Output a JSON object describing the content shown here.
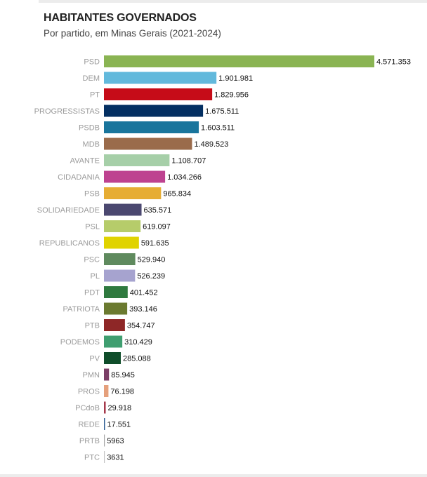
{
  "header": {
    "title": "HABITANTES GOVERNADOS",
    "subtitle": "Por partido, em Minas Gerais (2021-2024)"
  },
  "chart_data": {
    "type": "bar",
    "orientation": "horizontal",
    "title": "HABITANTES GOVERNADOS",
    "subtitle": "Por partido, em Minas Gerais (2021-2024)",
    "xlabel": "",
    "ylabel": "",
    "grid": false,
    "legend": "none",
    "categories": [
      "PSD",
      "DEM",
      "PT",
      "PROGRESSISTAS",
      "PSDB",
      "MDB",
      "AVANTE",
      "CIDADANIA",
      "PSB",
      "SOLIDARIEDADE",
      "PSL",
      "REPUBLICANOS",
      "PSC",
      "PL",
      "PDT",
      "PATRIOTA",
      "PTB",
      "PODEMOS",
      "PV",
      "PMN",
      "PROS",
      "PCdoB",
      "REDE",
      "PRTB",
      "PTC"
    ],
    "values": [
      4571353,
      1901981,
      1829956,
      1675511,
      1603511,
      1489523,
      1108707,
      1034266,
      965834,
      635571,
      619097,
      591635,
      529940,
      526239,
      401452,
      393146,
      354747,
      310429,
      285088,
      85945,
      76198,
      29918,
      17551,
      5963,
      3631
    ],
    "value_labels": [
      "4.571.353",
      "1.901.981",
      "1.829.956",
      "1.675.511",
      "1.603.511",
      "1.489.523",
      "1.108.707",
      "1.034.266",
      "965.834",
      "635.571",
      "619.097",
      "591.635",
      "529.940",
      "526.239",
      "401.452",
      "393.146",
      "354.747",
      "310.429",
      "285.088",
      "85.945",
      "76.198",
      "29.918",
      "17.551",
      "5963",
      "3631"
    ],
    "colors": [
      "#8ab453",
      "#62b9dc",
      "#c60c18",
      "#042f62",
      "#19759c",
      "#9a6b4b",
      "#a6cfa8",
      "#be4290",
      "#e6ad34",
      "#4b4870",
      "#b6cc6a",
      "#e0d300",
      "#5f8a5e",
      "#a6a3cf",
      "#2f7a3f",
      "#6b7a30",
      "#8e2727",
      "#3f9e70",
      "#0f4d2a",
      "#7b3e66",
      "#e5a07c",
      "#a5394b",
      "#2e5d93",
      "#a3a3a3",
      "#c2c2c2"
    ]
  }
}
